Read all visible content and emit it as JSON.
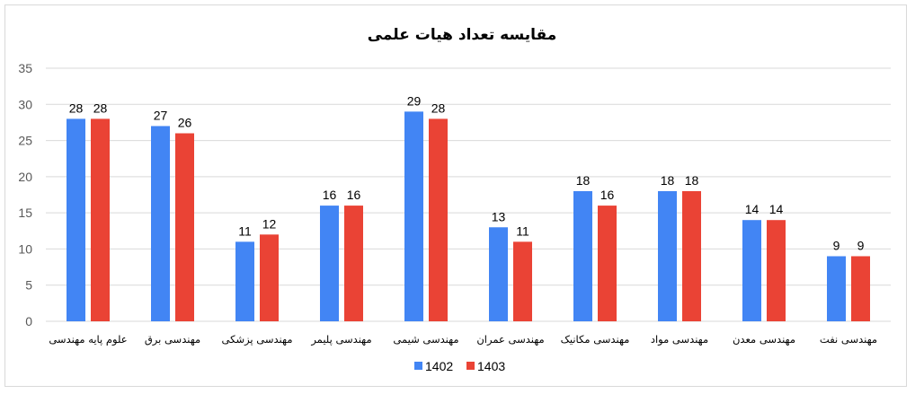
{
  "chart_data": {
    "type": "bar",
    "title": "مقایسه تعداد هیات علمی",
    "xlabel": "",
    "ylabel": "",
    "ylim": [
      0,
      35
    ],
    "yticks": [
      0,
      5,
      10,
      15,
      20,
      25,
      30,
      35
    ],
    "grid": true,
    "legend_position": "bottom",
    "categories": [
      "علوم پایه مهندسی",
      "مهندسی برق",
      "مهندسی پزشکی",
      "مهندسی پلیمر",
      "مهندسی شیمی",
      "مهندسی عمران",
      "مهندسی مکانیک",
      "مهندسی مواد",
      "مهندسی معدن",
      "مهندسی نفت"
    ],
    "series": [
      {
        "name": "1402",
        "color": "#4285f4",
        "values": [
          28,
          27,
          11,
          16,
          29,
          13,
          18,
          18,
          14,
          9
        ]
      },
      {
        "name": "1403",
        "color": "#ea4335",
        "values": [
          28,
          26,
          12,
          16,
          28,
          11,
          16,
          18,
          14,
          9
        ]
      }
    ]
  }
}
